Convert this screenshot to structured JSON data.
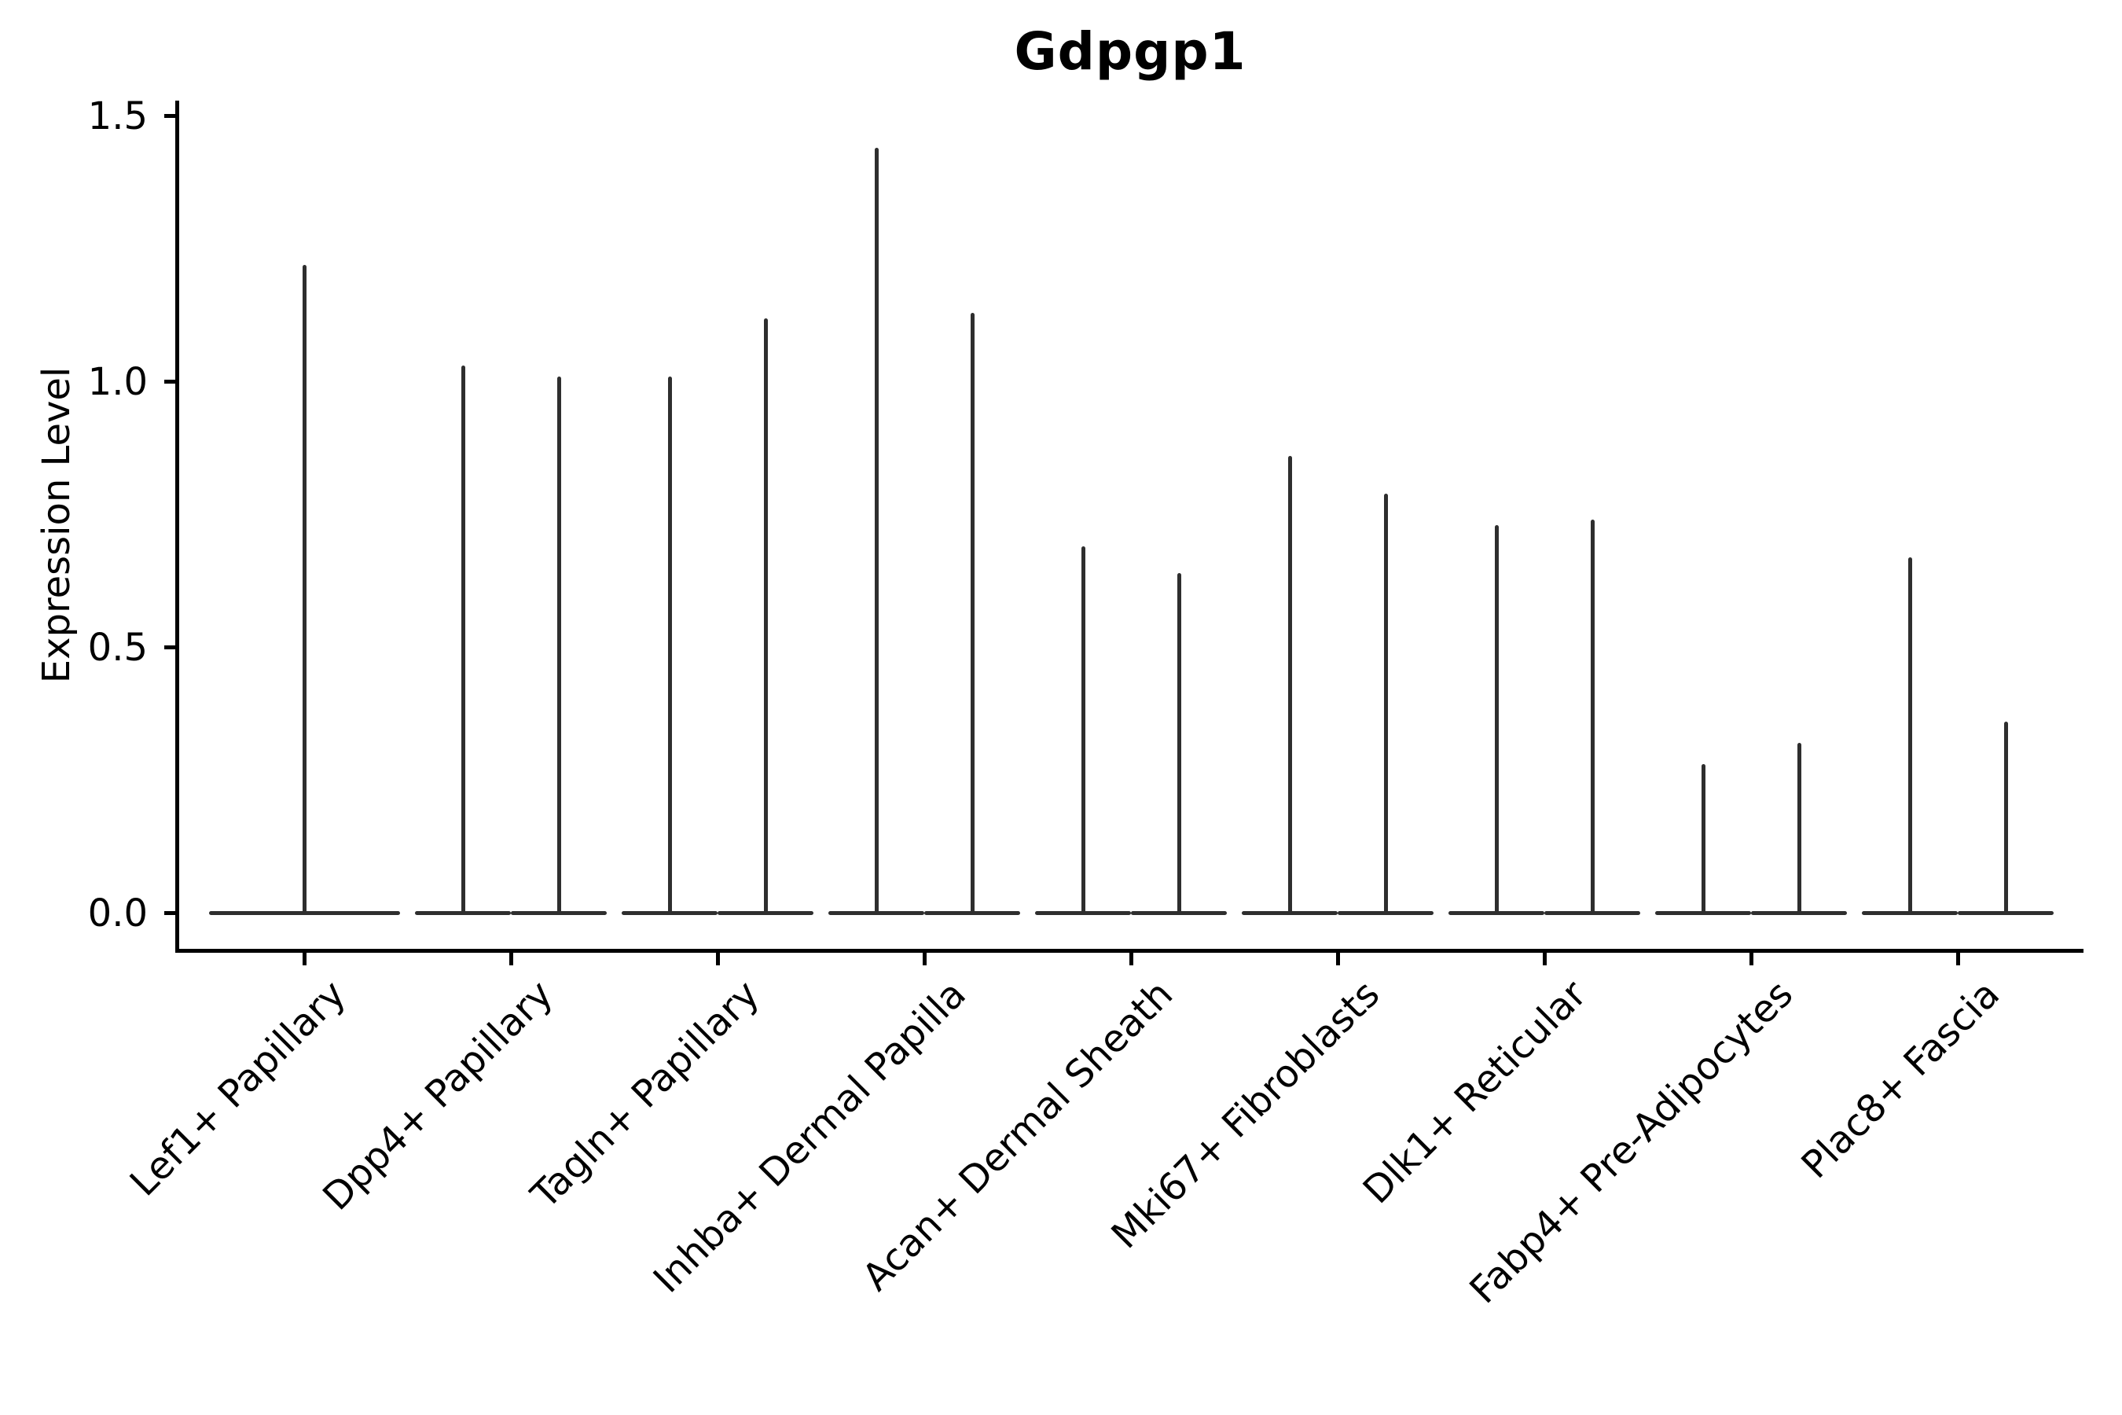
{
  "chart_data": {
    "type": "violin",
    "title": "Gdpgp1",
    "xlabel": "",
    "ylabel": "Expression Level",
    "ylim": [
      0,
      1.5
    ],
    "ytick_labels": [
      "0.0",
      "0.5",
      "1.0",
      "1.5"
    ],
    "ytick_values": [
      0.0,
      0.5,
      1.0,
      1.5
    ],
    "grid": "off",
    "legend": "none",
    "categories": [
      "Lef1+ Papillary",
      "Dpp4+ Papillary",
      "Tagln+ Papillary",
      "Inhba+ Dermal Papilla",
      "Acan+ Dermal Sheath",
      "Mki67+ Fibroblasts",
      "Dlk1+ Reticular",
      "Fabp4+ Pre-Adipocytes",
      "Plac8+ Fascia"
    ],
    "violin_max_per_category": [
      [
        1.22
      ],
      [
        1.03,
        1.01
      ],
      [
        1.01,
        1.12
      ],
      [
        1.44,
        1.13
      ],
      [
        0.69,
        0.64
      ],
      [
        0.86,
        0.79
      ],
      [
        0.73,
        0.74
      ],
      [
        0.28,
        0.32
      ],
      [
        0.67,
        0.36
      ]
    ],
    "violin_color": "#2e2e2e",
    "axis_color": "#000000",
    "text_color": "#000000",
    "note": "Density mass concentrated at 0: each violin renders as a flat bar at y=0 plus a thin vertical spike up to its maximum expression value."
  }
}
